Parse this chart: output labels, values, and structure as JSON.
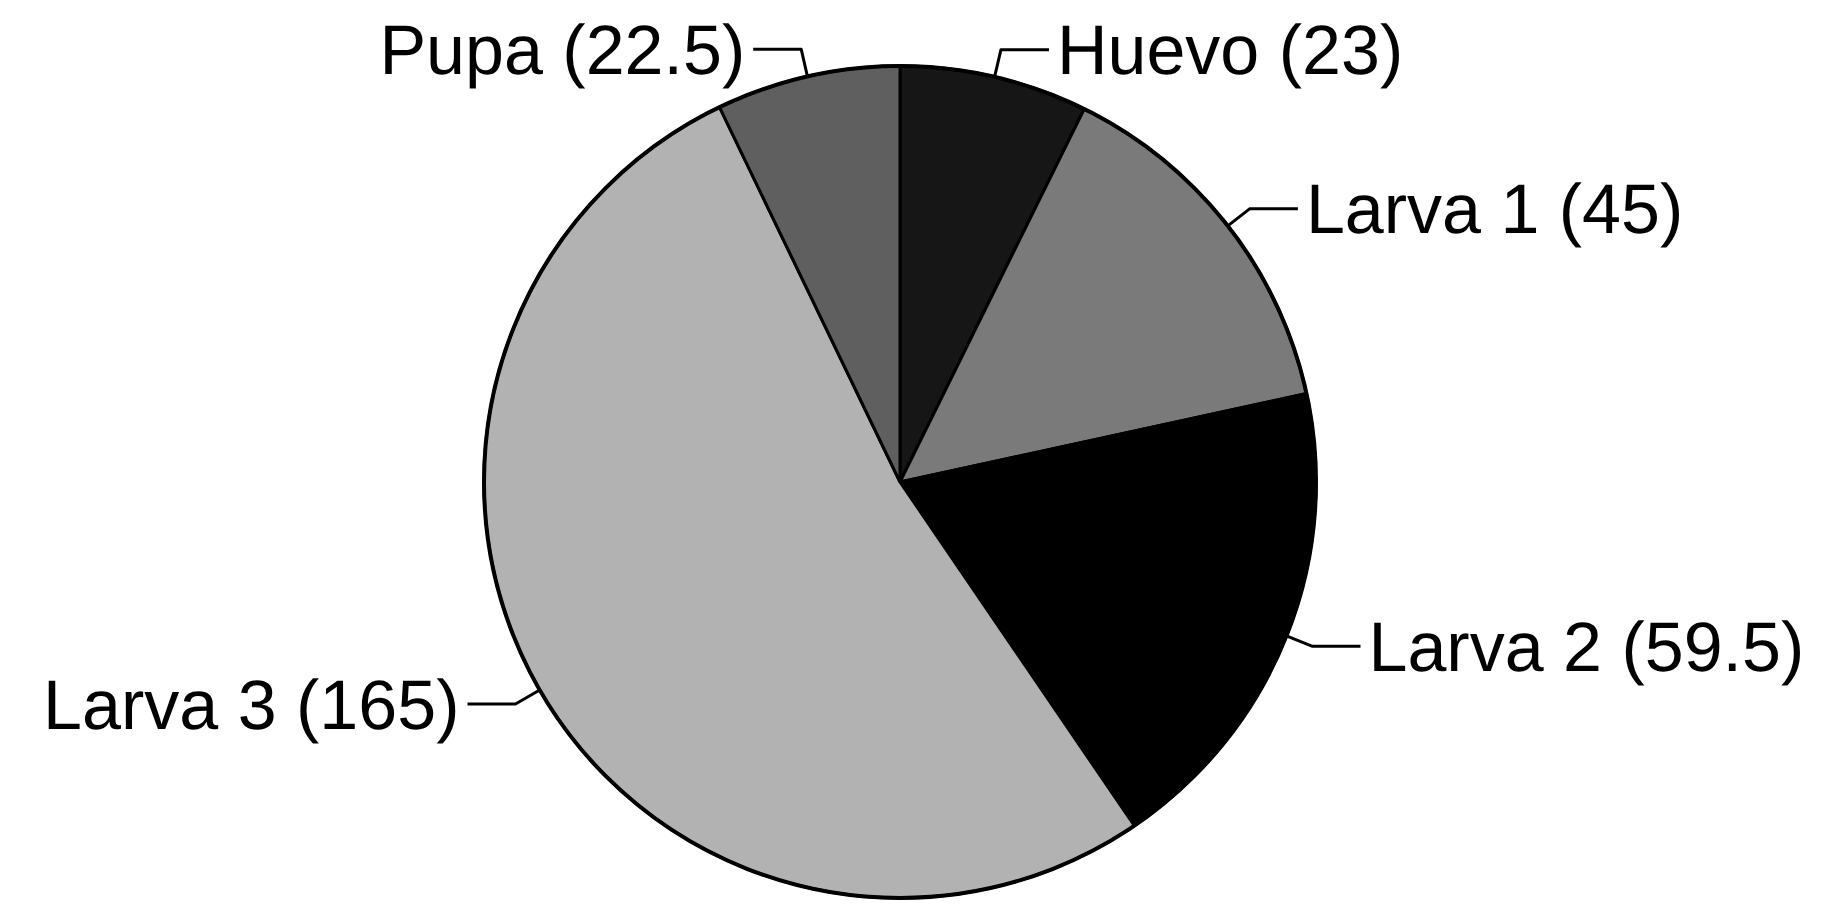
{
  "chart_data": {
    "type": "pie",
    "categories": [
      "Huevo",
      "Larva 1",
      "Larva 2",
      "Larva 3",
      "Pupa"
    ],
    "values": [
      23,
      45,
      59.5,
      165,
      22.5
    ],
    "value_labels": [
      "(23)",
      "(45)",
      "(59.5)",
      "(165)",
      "(22.5)"
    ],
    "colors": [
      "#161616",
      "#7a7a7a",
      "#000000",
      "#b2b2b2",
      "#5f5f5f"
    ]
  }
}
